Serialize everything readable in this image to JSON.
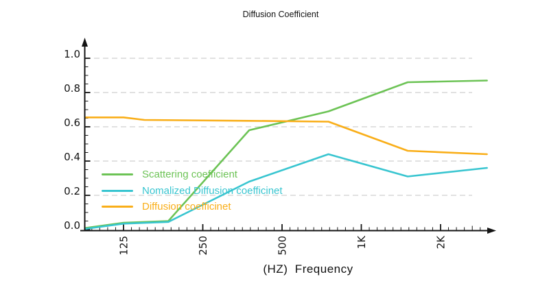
{
  "chart_data": {
    "type": "line",
    "title": "Diffusion Coefficient",
    "xlabel": "(HZ)  Frequency",
    "ylabel": "",
    "x_scale": "log2",
    "x_unit": "Hz",
    "xlim": [
      89,
      3000
    ],
    "ylim": [
      0,
      1.08
    ],
    "x_ticks": [
      {
        "f": 125,
        "label": "125"
      },
      {
        "f": 250,
        "label": "250"
      },
      {
        "f": 500,
        "label": "500"
      },
      {
        "f": 1000,
        "label": "1K"
      },
      {
        "f": 2000,
        "label": "2K"
      }
    ],
    "y_ticks": [
      {
        "v": 0.0,
        "label": "0.0"
      },
      {
        "v": 0.2,
        "label": "0.2"
      },
      {
        "v": 0.4,
        "label": "0.4"
      },
      {
        "v": 0.6,
        "label": "0.6"
      },
      {
        "v": 0.8,
        "label": "0.8"
      },
      {
        "v": 1.0,
        "label": "1.0"
      }
    ],
    "grid": {
      "horizontal": true,
      "style": "dashed",
      "color": "#d7d7d7"
    },
    "axis_color": "#141414",
    "legend_position": "inside-lower-left",
    "series": [
      {
        "name": "Scattering coefficient",
        "color": "#6cc355",
        "points": [
          [
            90,
            0.01
          ],
          [
            125,
            0.04
          ],
          [
            185,
            0.05
          ],
          [
            375,
            0.58
          ],
          [
            750,
            0.69
          ],
          [
            1500,
            0.86
          ],
          [
            3000,
            0.87
          ]
        ]
      },
      {
        "name": "Nomalized Diffusion coefficinet",
        "color": "#38c5d0",
        "points": [
          [
            90,
            0.005
          ],
          [
            125,
            0.035
          ],
          [
            185,
            0.045
          ],
          [
            375,
            0.28
          ],
          [
            750,
            0.44
          ],
          [
            1500,
            0.31
          ],
          [
            3000,
            0.36
          ]
        ]
      },
      {
        "name": "Diffusion coefficinet",
        "color": "#f9ae18",
        "points": [
          [
            90,
            0.655
          ],
          [
            125,
            0.655
          ],
          [
            150,
            0.64
          ],
          [
            375,
            0.635
          ],
          [
            750,
            0.63
          ],
          [
            1500,
            0.46
          ],
          [
            3000,
            0.44
          ]
        ]
      }
    ]
  }
}
